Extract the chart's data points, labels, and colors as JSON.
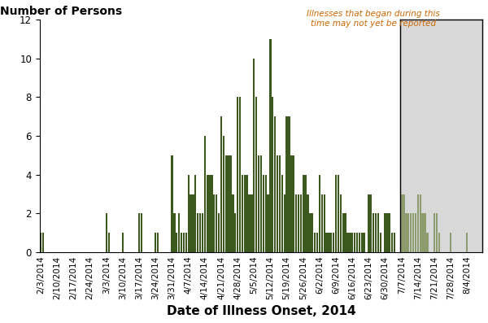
{
  "bar_color_dark": "#3d5a1e",
  "bar_color_light": "#8c9c6e",
  "shaded_region_color": "#d8d8d8",
  "ylabel": "Number of Persons",
  "xlabel": "Date of Illness Onset, 2014",
  "annotation_text": "Illnesses that began during this\ntime may not yet be reported",
  "annotation_color": "#cc6600",
  "background_color": "#ffffff",
  "ylim": [
    0,
    12
  ],
  "yticks": [
    0,
    2,
    4,
    6,
    8,
    10,
    12
  ],
  "tick_fontsize": 7.5,
  "ylabel_fontsize": 10,
  "xlabel_fontsize": 11,
  "weekly_labels": [
    "2/3/2014",
    "2/10/2014",
    "2/17/2014",
    "2/24/2014",
    "3/3/2014",
    "3/10/2014",
    "3/17/2014",
    "3/24/2014",
    "3/31/2014",
    "4/7/2014",
    "4/14/2014",
    "4/21/2014",
    "4/28/2014",
    "5/5/2014",
    "5/12/2014",
    "5/19/2014",
    "5/26/2014",
    "6/2/2014",
    "6/9/2014",
    "6/16/2014",
    "6/23/2014",
    "6/30/2014",
    "7/7/2014",
    "7/14/2014",
    "7/21/2014",
    "7/28/2014",
    "8/4/2014"
  ],
  "daily_values": [
    1,
    1,
    0,
    0,
    0,
    0,
    0,
    0,
    0,
    0,
    0,
    0,
    0,
    0,
    0,
    0,
    0,
    0,
    0,
    0,
    0,
    0,
    0,
    0,
    0,
    0,
    0,
    0,
    2,
    1,
    0,
    0,
    0,
    0,
    0,
    1,
    0,
    0,
    0,
    0,
    0,
    0,
    2,
    2,
    0,
    0,
    0,
    0,
    0,
    1,
    1,
    0,
    0,
    0,
    0,
    0,
    5,
    2,
    1,
    2,
    1,
    1,
    1,
    4,
    3,
    3,
    4,
    2,
    2,
    2,
    6,
    4,
    4,
    4,
    3,
    3,
    2,
    7,
    6,
    5,
    5,
    5,
    3,
    2,
    8,
    8,
    4,
    4,
    4,
    3,
    3,
    10,
    8,
    5,
    5,
    4,
    4,
    3,
    11,
    8,
    7,
    5,
    5,
    4,
    3,
    7,
    7,
    5,
    5,
    3,
    3,
    3,
    4,
    4,
    3,
    2,
    2,
    1,
    1,
    4,
    3,
    3,
    1,
    1,
    1,
    1,
    4,
    4,
    3,
    2,
    2,
    1,
    1,
    1,
    1,
    1,
    1,
    1,
    1,
    0,
    3,
    3,
    2,
    2,
    2,
    1,
    0,
    2,
    2,
    2,
    1,
    1,
    0,
    0,
    3,
    3,
    2,
    2,
    2,
    2,
    2,
    3,
    3,
    2,
    2,
    1,
    0,
    0,
    2,
    2,
    1,
    0,
    0,
    0,
    0,
    1,
    0,
    0,
    0,
    0,
    0,
    0,
    1,
    0,
    0,
    0,
    0,
    0,
    0
  ],
  "shade_starts_at_week": 22,
  "num_weeks": 27,
  "days_per_week": 7
}
